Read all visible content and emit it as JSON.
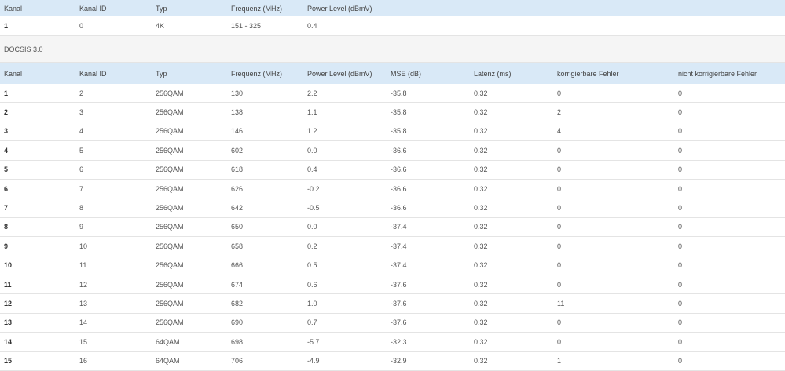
{
  "top_table": {
    "header": [
      "Kanal",
      "Kanal ID",
      "Typ",
      "Frequenz (MHz)",
      "Power Level (dBmV)"
    ],
    "rows": [
      [
        "1",
        "0",
        "4K",
        "151 - 325",
        "0.4"
      ]
    ]
  },
  "section_title": "DOCSIS 3.0",
  "table": {
    "header": [
      "Kanal",
      "Kanal ID",
      "Typ",
      "Frequenz (MHz)",
      "Power Level (dBmV)",
      "MSE (dB)",
      "Latenz (ms)",
      "korrigierbare Fehler",
      "nicht korrigierbare Fehler"
    ],
    "rows": [
      [
        "1",
        "2",
        "256QAM",
        "130",
        "2.2",
        "-35.8",
        "0.32",
        "0",
        "0"
      ],
      [
        "2",
        "3",
        "256QAM",
        "138",
        "1.1",
        "-35.8",
        "0.32",
        "2",
        "0"
      ],
      [
        "3",
        "4",
        "256QAM",
        "146",
        "1.2",
        "-35.8",
        "0.32",
        "4",
        "0"
      ],
      [
        "4",
        "5",
        "256QAM",
        "602",
        "0.0",
        "-36.6",
        "0.32",
        "0",
        "0"
      ],
      [
        "5",
        "6",
        "256QAM",
        "618",
        "0.4",
        "-36.6",
        "0.32",
        "0",
        "0"
      ],
      [
        "6",
        "7",
        "256QAM",
        "626",
        "-0.2",
        "-36.6",
        "0.32",
        "0",
        "0"
      ],
      [
        "7",
        "8",
        "256QAM",
        "642",
        "-0.5",
        "-36.6",
        "0.32",
        "0",
        "0"
      ],
      [
        "8",
        "9",
        "256QAM",
        "650",
        "0.0",
        "-37.4",
        "0.32",
        "0",
        "0"
      ],
      [
        "9",
        "10",
        "256QAM",
        "658",
        "0.2",
        "-37.4",
        "0.32",
        "0",
        "0"
      ],
      [
        "10",
        "11",
        "256QAM",
        "666",
        "0.5",
        "-37.4",
        "0.32",
        "0",
        "0"
      ],
      [
        "11",
        "12",
        "256QAM",
        "674",
        "0.6",
        "-37.6",
        "0.32",
        "0",
        "0"
      ],
      [
        "12",
        "13",
        "256QAM",
        "682",
        "1.0",
        "-37.6",
        "0.32",
        "11",
        "0"
      ],
      [
        "13",
        "14",
        "256QAM",
        "690",
        "0.7",
        "-37.6",
        "0.32",
        "0",
        "0"
      ],
      [
        "14",
        "15",
        "64QAM",
        "698",
        "-5.7",
        "-32.3",
        "0.32",
        "0",
        "0"
      ],
      [
        "15",
        "16",
        "64QAM",
        "706",
        "-4.9",
        "-32.9",
        "0.32",
        "1",
        "0"
      ]
    ]
  }
}
